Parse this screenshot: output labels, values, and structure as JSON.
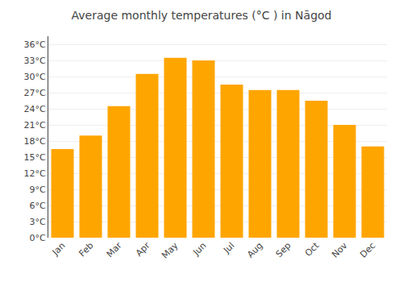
{
  "chart_data": {
    "type": "bar",
    "title": "Average monthly temperatures (°C ) in Nāgod",
    "categories": [
      "Jan",
      "Feb",
      "Mar",
      "Apr",
      "May",
      "Jun",
      "Jul",
      "Aug",
      "Sep",
      "Oct",
      "Nov",
      "Dec"
    ],
    "values": [
      16.5,
      19.0,
      24.5,
      30.5,
      33.5,
      33.0,
      28.5,
      27.5,
      27.5,
      25.5,
      21.0,
      17.0
    ],
    "color": "#FFA500",
    "ylim": [
      0,
      37.5
    ],
    "yticks": [
      {
        "value": 0,
        "label": "0°C"
      },
      {
        "value": 3,
        "label": "3°C"
      },
      {
        "value": 6,
        "label": "6°C"
      },
      {
        "value": 9,
        "label": "9°C"
      },
      {
        "value": 12,
        "label": "12°C"
      },
      {
        "value": 15,
        "label": "15°C"
      },
      {
        "value": 18,
        "label": "18°C"
      },
      {
        "value": 21,
        "label": "21°C"
      },
      {
        "value": 24,
        "label": "24°C"
      },
      {
        "value": 27,
        "label": "27°C"
      },
      {
        "value": 30,
        "label": "30°C"
      },
      {
        "value": 33,
        "label": "33°C"
      },
      {
        "value": 36,
        "label": "36°C"
      }
    ],
    "grid": true
  }
}
